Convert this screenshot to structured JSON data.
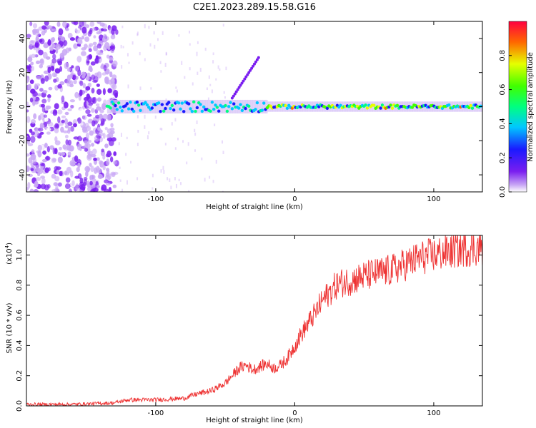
{
  "title": "C2E1.2023.289.15.58.G16",
  "chart_data": [
    {
      "type": "heatmap",
      "xlabel": "Height of straight line (km)",
      "ylabel": "Frequency (Hz)",
      "xlim": [
        -193,
        135
      ],
      "ylim": [
        -50,
        50
      ],
      "x_ticks": [
        -100,
        0,
        100
      ],
      "x_tick_labels": [
        "-100",
        "0",
        "100"
      ],
      "y_ticks": [
        -40,
        -20,
        0,
        20,
        40
      ],
      "y_tick_labels": [
        "-40",
        "-20",
        "0",
        "20",
        "40"
      ],
      "colorbar": {
        "label": "Normalized spectral amplitude",
        "range": [
          0,
          1
        ],
        "ticks": [
          0.0,
          0.2,
          0.4,
          0.6,
          0.8
        ],
        "tick_labels": [
          "0.0",
          "0.2",
          "0.4",
          "0.6",
          "0.8"
        ]
      },
      "description_points": {
        "noise_region_x": [
          -193,
          -128
        ],
        "signal_band_center_hz": 0,
        "signal_start_x": -135,
        "chirp_line": {
          "x": [
            -45,
            -25
          ],
          "y": [
            5,
            30
          ]
        }
      },
      "colormap": "rainbow"
    },
    {
      "type": "line",
      "xlabel": "Height of straight line (km)",
      "ylabel": "SNR (10 * v/v)",
      "y_scale_note": "(x10",
      "y_scale_exp": "4",
      "xlim": [
        -193,
        135
      ],
      "ylim": [
        0,
        1.13
      ],
      "x_ticks": [
        -100,
        0,
        100
      ],
      "x_tick_labels": [
        "-100",
        "0",
        "100"
      ],
      "y_ticks": [
        0.0,
        0.2,
        0.4,
        0.6,
        0.8,
        1.0
      ],
      "y_tick_labels": [
        "0.0",
        "0.2",
        "0.4",
        "0.6",
        "0.8",
        "1.0"
      ],
      "series": [
        {
          "color": "#ee3333",
          "x": [
            -193,
            -160,
            -130,
            -120,
            -100,
            -80,
            -70,
            -60,
            -50,
            -45,
            -40,
            -35,
            -30,
            -25,
            -20,
            -15,
            -10,
            -5,
            0,
            5,
            10,
            15,
            20,
            25,
            30,
            35,
            40,
            50,
            60,
            70,
            80,
            90,
            100,
            110,
            120,
            135
          ],
          "y": [
            0.01,
            0.01,
            0.02,
            0.04,
            0.04,
            0.05,
            0.08,
            0.1,
            0.15,
            0.2,
            0.25,
            0.27,
            0.24,
            0.26,
            0.28,
            0.25,
            0.27,
            0.32,
            0.4,
            0.48,
            0.55,
            0.62,
            0.7,
            0.75,
            0.8,
            0.82,
            0.83,
            0.86,
            0.88,
            0.9,
            0.94,
            0.98,
            1.0,
            1.02,
            1.04,
            1.05
          ]
        }
      ]
    }
  ]
}
